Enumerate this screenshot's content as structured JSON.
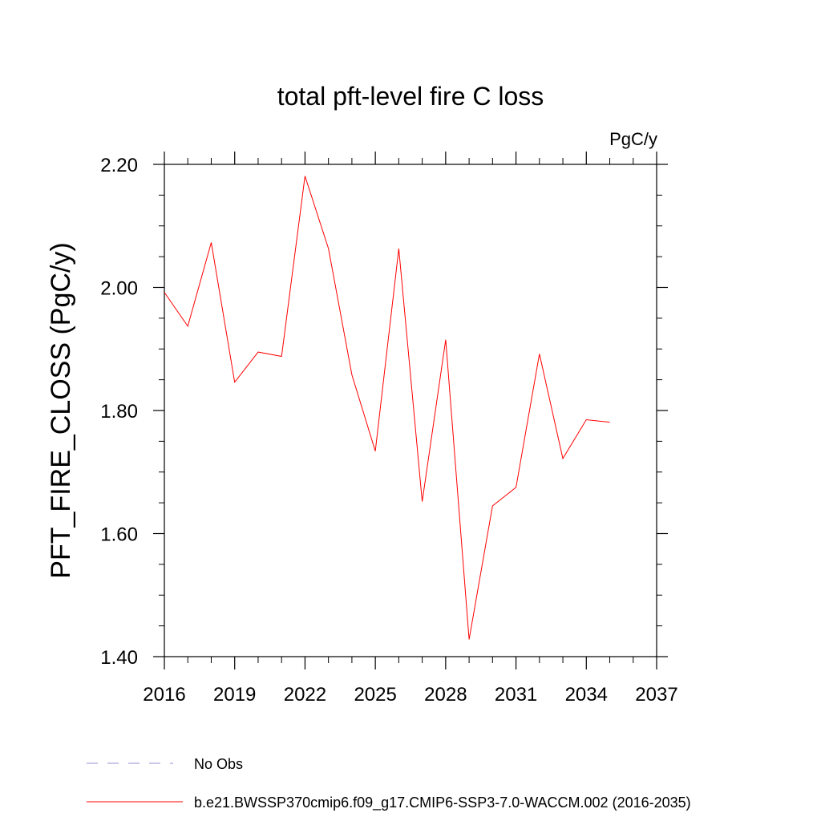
{
  "chart_data": {
    "type": "line",
    "title": "total pft-level fire C loss",
    "units_label": "PgC/y",
    "ylabel": "PFT_FIRE_CLOSS  (PgC/y)",
    "xlabel": "",
    "xlim": [
      2016,
      2037
    ],
    "ylim": [
      1.4,
      2.2
    ],
    "x_ticks": [
      2016,
      2019,
      2022,
      2025,
      2028,
      2031,
      2034,
      2037
    ],
    "x_tick_labels": [
      "2016",
      "2019",
      "2022",
      "2025",
      "2028",
      "2031",
      "2034",
      "2037"
    ],
    "y_ticks": [
      1.4,
      1.6,
      1.8,
      2.0,
      2.2
    ],
    "y_tick_labels": [
      "1.40",
      "1.60",
      "1.80",
      "2.00",
      "2.20"
    ],
    "grid": false,
    "legend_placement": "bottom",
    "series": [
      {
        "name": "b.e21.BWSSP370cmip6.f09_g17.CMIP6-SSP3-7.0-WACCM.002 (2016-2035)",
        "color": "#ff0000",
        "style": "solid",
        "x": [
          2016,
          2017,
          2018,
          2019,
          2020,
          2021,
          2022,
          2023,
          2024,
          2025,
          2026,
          2027,
          2028,
          2029,
          2030,
          2031,
          2032,
          2033,
          2034,
          2035
        ],
        "y": [
          1.992,
          1.937,
          2.073,
          1.846,
          1.895,
          1.888,
          2.181,
          2.063,
          1.858,
          1.734,
          2.063,
          1.652,
          1.915,
          1.428,
          1.645,
          1.675,
          1.892,
          1.722,
          1.785,
          1.781
        ]
      },
      {
        "name": "No Obs",
        "color": "#9a8fd0",
        "style": "dashed",
        "x": [],
        "y": []
      }
    ]
  }
}
